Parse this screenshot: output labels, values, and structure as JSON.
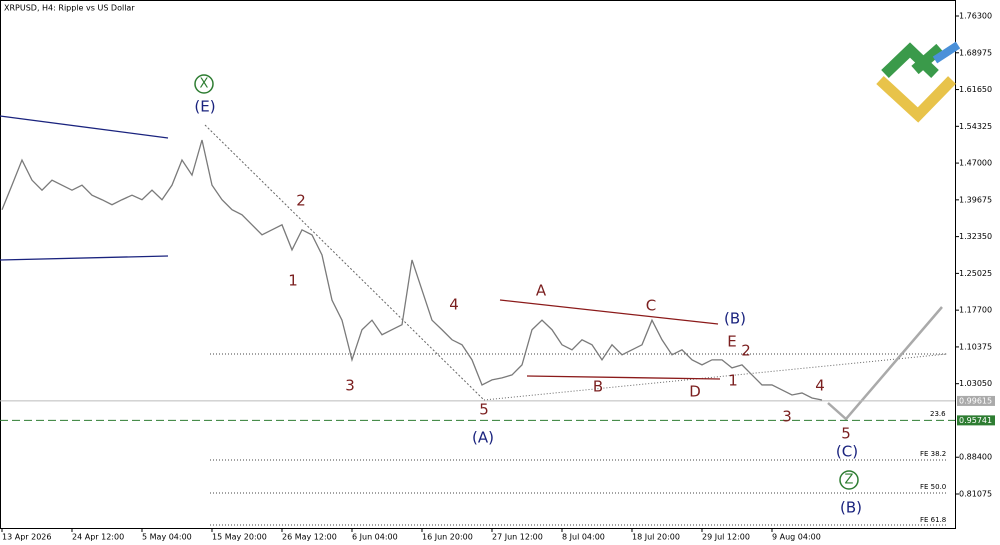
{
  "chart_data": {
    "type": "line",
    "title": "XRPUSD, H4:  Ripple vs US Dollar",
    "categories": [
      "13 Apr 2026",
      null,
      null,
      null,
      null,
      null,
      null,
      "24 Apr 12:00",
      null,
      null,
      null,
      null,
      null,
      null,
      "5 May 04:00",
      null,
      null,
      null,
      null,
      null,
      null,
      "15 May 20:00",
      null,
      null,
      null,
      null,
      null,
      null,
      "26 May 12:00",
      null,
      null,
      null,
      null,
      null,
      null,
      "6 Jun 04:00",
      null,
      null,
      null,
      null,
      null,
      null,
      "16 Jun 20:00",
      null,
      null,
      null,
      null,
      null,
      null,
      "27 Jun 12:00",
      null,
      null,
      null,
      null,
      null,
      null,
      "8 Jul 04:00",
      null,
      null,
      null,
      null,
      null,
      null,
      "18 Jul 20:00",
      null,
      null,
      null,
      null,
      null,
      null,
      "29 Jul 12:00",
      null,
      null,
      null,
      null,
      null,
      null,
      "9 Aug 04:00",
      null,
      null,
      null,
      null,
      null
    ],
    "values": [
      1.377,
      1.426,
      1.476,
      1.436,
      1.416,
      1.436,
      1.426,
      1.416,
      1.426,
      1.406,
      1.397,
      1.387,
      1.397,
      1.406,
      1.397,
      1.416,
      1.397,
      1.426,
      1.476,
      1.446,
      1.516,
      1.426,
      1.397,
      1.377,
      1.367,
      1.347,
      1.327,
      1.337,
      1.347,
      1.297,
      1.337,
      1.327,
      1.287,
      1.197,
      1.157,
      1.078,
      1.138,
      1.157,
      1.128,
      1.138,
      1.148,
      1.277,
      1.217,
      1.157,
      1.138,
      1.118,
      1.108,
      1.078,
      1.028,
      1.038,
      1.042,
      1.048,
      1.068,
      1.138,
      1.157,
      1.138,
      1.108,
      1.098,
      1.118,
      1.108,
      1.078,
      1.108,
      1.088,
      1.098,
      1.108,
      1.157,
      1.118,
      1.088,
      1.098,
      1.078,
      1.068,
      1.078,
      1.078,
      1.062,
      1.068,
      1.048,
      1.028,
      1.028,
      1.018,
      1.008,
      1.012,
      1.002,
      0.998
    ],
    "color": "#7a7a7a",
    "ylim": [
      0.743,
      1.7949
    ],
    "yticks": [
      {
        "value": 0.81075,
        "label": "0.81075"
      },
      {
        "value": 0.884,
        "label": "0.88400"
      },
      {
        "value": 1.0305,
        "label": "1.03050"
      },
      {
        "value": 1.10375,
        "label": "1.10375"
      },
      {
        "value": 1.177,
        "label": "1.17700"
      },
      {
        "value": 1.25025,
        "label": "1.25025"
      },
      {
        "value": 1.3235,
        "label": "1.32350"
      },
      {
        "value": 1.39675,
        "label": "1.39675"
      },
      {
        "value": 1.47,
        "label": "1.47000"
      },
      {
        "value": 1.54325,
        "label": "1.54325"
      },
      {
        "value": 1.6165,
        "label": "1.61650"
      },
      {
        "value": 1.68975,
        "label": "1.68975"
      },
      {
        "value": 1.763,
        "label": "1.76300"
      }
    ],
    "price_labels": [
      {
        "value": 0.99615,
        "label": "0.99615"
      },
      {
        "value": 0.95741,
        "label": "0.95741"
      }
    ],
    "annotations": [
      "X",
      "(E)",
      "2",
      "1",
      "3",
      "4",
      "5",
      "(A)",
      "A",
      "B",
      "C",
      "D",
      "E",
      "(B)",
      "2",
      "1",
      "3",
      "4",
      "5",
      "(C)",
      "Z",
      "(B)"
    ],
    "fib_labels": [
      "23.6",
      "FE 38.2",
      "FE 50.0",
      "FE 61.8"
    ]
  }
}
